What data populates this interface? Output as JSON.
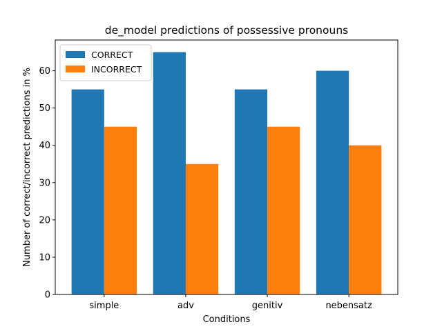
{
  "chart_data": {
    "type": "bar",
    "title": "de_model predictions of possessive pronouns",
    "xlabel": "Conditions",
    "ylabel": "Number of correct/incorrect predictions in %",
    "categories": [
      "simple",
      "adv",
      "genitiv",
      "nebensatz"
    ],
    "series": [
      {
        "name": "CORRECT",
        "color": "#1f77b4",
        "values": [
          55,
          65,
          55,
          60
        ]
      },
      {
        "name": "INCORRECT",
        "color": "#ff7f0e",
        "values": [
          45,
          35,
          45,
          40
        ]
      }
    ],
    "ylim": [
      0,
      68.25
    ],
    "yticks": [
      0,
      10,
      20,
      30,
      40,
      50,
      60
    ],
    "grid": false,
    "legend_position": "upper-left"
  }
}
